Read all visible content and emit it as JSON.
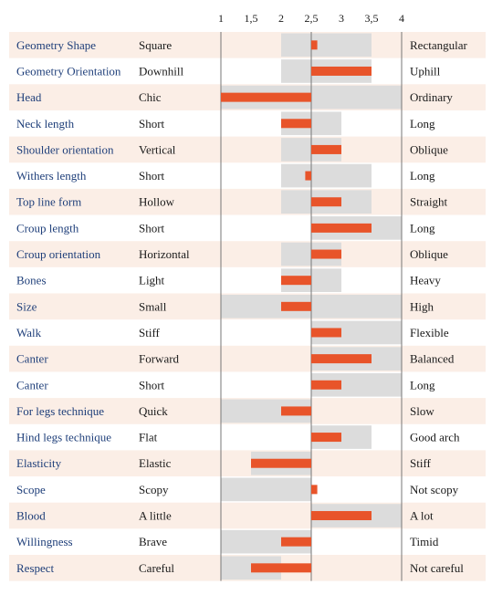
{
  "colors": {
    "stripe": "#fbeee6",
    "range": "#dcdcdc",
    "bar": "#e8542a",
    "axis": "#777777",
    "trait_text": "#1f3f7a",
    "text": "#1a1a1a"
  },
  "chart_data": {
    "type": "bar",
    "orientation": "horizontal-diverging",
    "title": "",
    "xlabel": "",
    "ylabel": "",
    "xlim": [
      1,
      4
    ],
    "baseline": 2.5,
    "ticks": [
      "1",
      "1,5",
      "2",
      "2,5",
      "3",
      "3,5",
      "4"
    ],
    "tick_values": [
      1,
      1.5,
      2,
      2.5,
      3,
      3.5,
      4
    ],
    "grid": false,
    "legend": "none",
    "rows": [
      {
        "trait": "Geometry Shape",
        "low": "Square",
        "high": "Rectangular",
        "range": [
          2,
          3.5
        ],
        "value": 2.6
      },
      {
        "trait": "Geometry Orientation",
        "low": "Downhill",
        "high": "Uphill",
        "range": [
          2,
          3.5
        ],
        "value": 3.5
      },
      {
        "trait": "Head",
        "low": "Chic",
        "high": "Ordinary",
        "range": [
          1,
          4
        ],
        "value": 1
      },
      {
        "trait": "Neck length",
        "low": "Short",
        "high": "Long",
        "range": [
          2,
          3
        ],
        "value": 2
      },
      {
        "trait": "Shoulder orientation",
        "low": "Vertical",
        "high": "Oblique",
        "range": [
          2,
          3
        ],
        "value": 3
      },
      {
        "trait": "Withers length",
        "low": "Short",
        "high": "Long",
        "range": [
          2,
          3.5
        ],
        "value": 2.4
      },
      {
        "trait": "Top line form",
        "low": "Hollow",
        "high": "Straight",
        "range": [
          2,
          3.5
        ],
        "value": 3
      },
      {
        "trait": "Croup length",
        "low": "Short",
        "high": "Long",
        "range": [
          2.5,
          4
        ],
        "value": 3.5
      },
      {
        "trait": "Croup orientation",
        "low": "Horizontal",
        "high": "Oblique",
        "range": [
          2,
          3
        ],
        "value": 3
      },
      {
        "trait": "Bones",
        "low": "Light",
        "high": "Heavy",
        "range": [
          2,
          3
        ],
        "value": 2
      },
      {
        "trait": "Size",
        "low": "Small",
        "high": "High",
        "range": [
          1,
          4
        ],
        "value": 2
      },
      {
        "trait": "Walk",
        "low": "Stiff",
        "high": "Flexible",
        "range": [
          2.5,
          4
        ],
        "value": 3
      },
      {
        "trait": "Canter",
        "low": "Forward",
        "high": "Balanced",
        "range": [
          2.5,
          4
        ],
        "value": 3.5
      },
      {
        "trait": "Canter",
        "low": "Short",
        "high": "Long",
        "range": [
          2.5,
          4
        ],
        "value": 3
      },
      {
        "trait": "For legs technique",
        "low": "Quick",
        "high": "Slow",
        "range": [
          1,
          2.5
        ],
        "value": 2
      },
      {
        "trait": "Hind legs technique",
        "low": "Flat",
        "high": "Good arch",
        "range": [
          2.5,
          3.5
        ],
        "value": 3
      },
      {
        "trait": "Elasticity",
        "low": "Elastic",
        "high": "Stiff",
        "range": [
          1.5,
          2.5
        ],
        "value": 1.5
      },
      {
        "trait": "Scope",
        "low": "Scopy",
        "high": "Not scopy",
        "range": [
          1,
          2.5
        ],
        "value": 2.6
      },
      {
        "trait": "Blood",
        "low": "A little",
        "high": "A lot",
        "range": [
          2.5,
          4
        ],
        "value": 3.5
      },
      {
        "trait": "Willingness",
        "low": "Brave",
        "high": "Timid",
        "range": [
          1,
          2.5
        ],
        "value": 2
      },
      {
        "trait": "Respect",
        "low": "Careful",
        "high": "Not careful",
        "range": [
          1,
          2
        ],
        "value": 1.5
      }
    ]
  }
}
